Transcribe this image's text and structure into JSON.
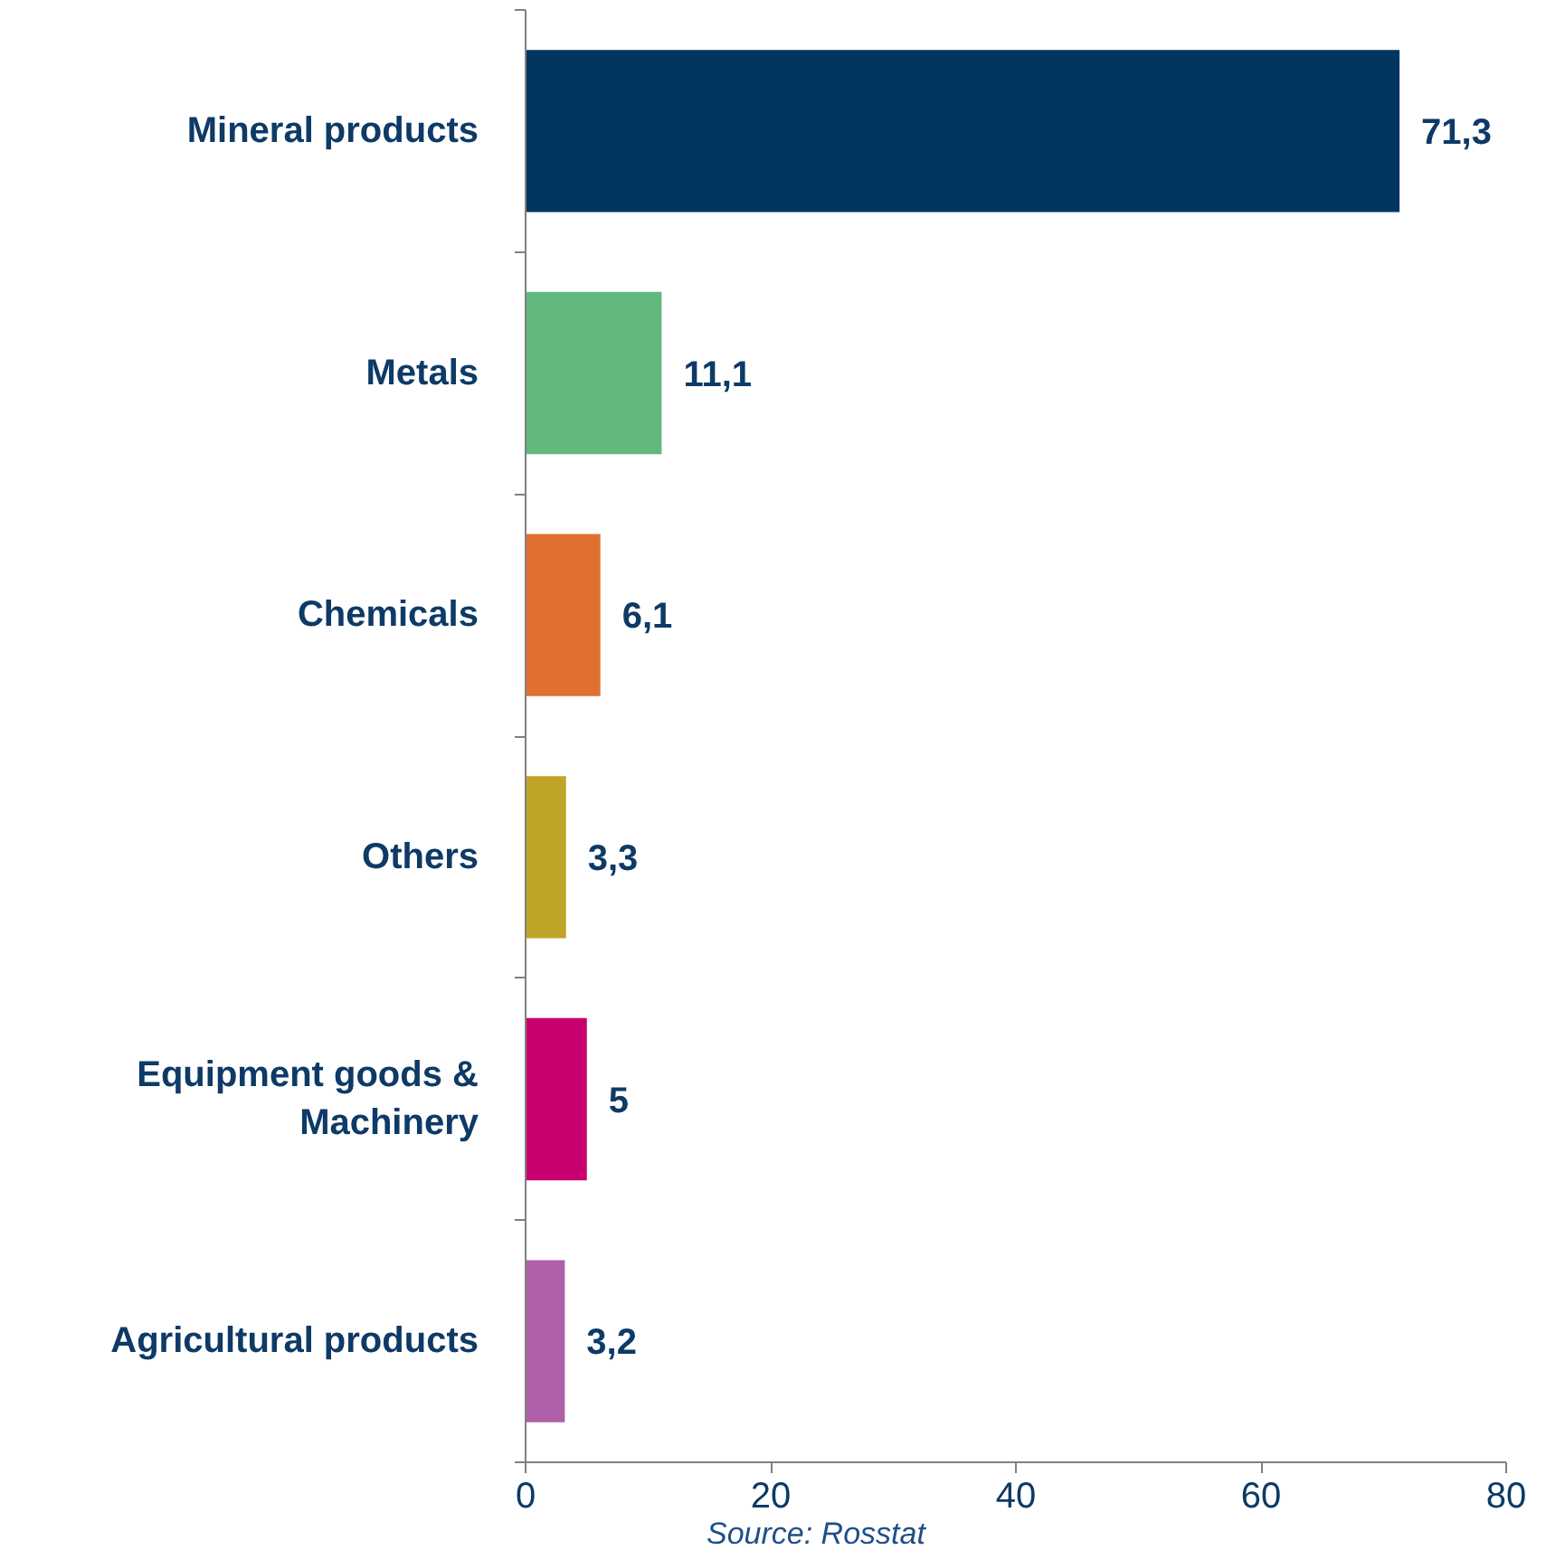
{
  "chart_data": {
    "type": "bar",
    "orientation": "horizontal",
    "categories": [
      "Mineral products",
      "Metals",
      "Chemicals",
      "Others",
      "Equipment goods & Machinery",
      "Agricultural products"
    ],
    "values": [
      71.3,
      11.1,
      6.1,
      3.3,
      5,
      3.2
    ],
    "colors": [
      "#003660",
      "#62b87e",
      "#e07030",
      "#c0a428",
      "#c8006e",
      "#b060a8"
    ],
    "value_labels": [
      "71,3",
      "11,1",
      "6,1",
      "3,3",
      "5",
      "3,2"
    ],
    "xlim": [
      0,
      80
    ],
    "xticks": [
      0,
      20,
      40,
      60,
      80
    ],
    "grid": false,
    "annotations": [
      "Source: Rosstat"
    ]
  }
}
